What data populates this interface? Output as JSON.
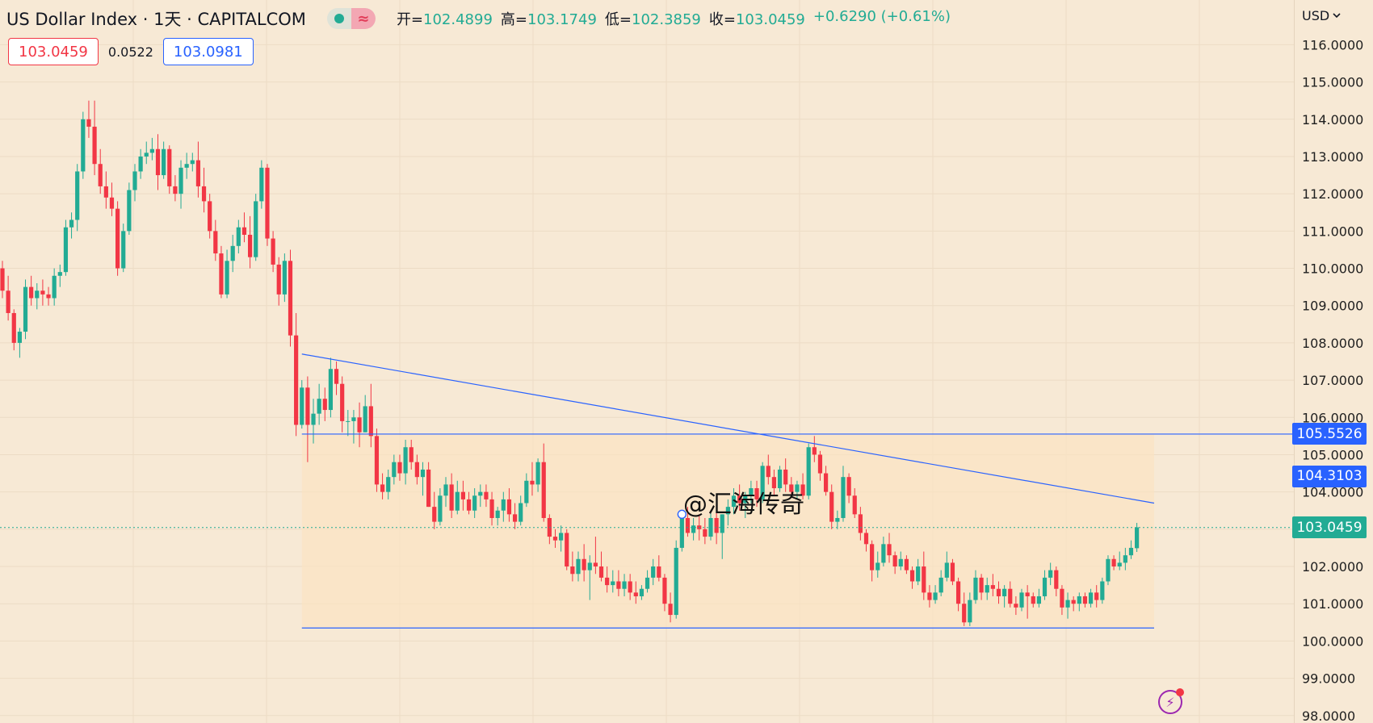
{
  "header": {
    "symbol_title": "US Dollar Index · 1天 · CAPITALCOM",
    "wave_icon": "≈",
    "ohlc": [
      {
        "label": "开=",
        "value": "102.4899"
      },
      {
        "label": "高=",
        "value": "103.1749"
      },
      {
        "label": "低=",
        "value": "102.3859"
      },
      {
        "label": "收=",
        "value": "103.0459"
      },
      {
        "label": "",
        "value": "+0.6290 (+0.61%)"
      }
    ]
  },
  "quote": {
    "sell": "103.0459",
    "spread": "0.0522",
    "buy": "103.0981"
  },
  "currency": {
    "label": "USD",
    "icon": "chevron-down-icon"
  },
  "watermark": "@汇海传奇",
  "price_tags": {
    "resistance": "105.5526",
    "trendline": "104.3103",
    "last": "103.0459"
  },
  "colors": {
    "up": "#22ab94",
    "down": "#f23645",
    "drawing": "#2962ff",
    "background": "#f7e9d5",
    "zone": "#fbe2c2"
  },
  "chart_data": {
    "type": "candlestick",
    "y_axis": {
      "ticks": [
        "116.0000",
        "115.0000",
        "114.0000",
        "113.0000",
        "112.0000",
        "111.0000",
        "110.0000",
        "109.0000",
        "108.0000",
        "107.0000",
        "106.0000",
        "105.0000",
        "104.0000",
        "103.0000",
        "102.0000",
        "101.0000",
        "100.0000",
        "99.0000",
        "98.0000"
      ],
      "ylim": [
        97.8,
        117.2
      ],
      "currency": "USD"
    },
    "last_price": 103.0459,
    "drawings": {
      "trendline": {
        "start_index": 52,
        "start_price": 107.7,
        "end_index": 200,
        "end_price": 103.7
      },
      "resistance": {
        "price": 105.5526,
        "start_index": 52,
        "end_index": 200
      },
      "support": {
        "price": 100.35,
        "start_index": 52,
        "end_index": 200
      },
      "zone": {
        "top": 105.5526,
        "bottom": 100.35,
        "start_index": 52,
        "end_index": 200
      }
    },
    "candles": [
      [
        110.0,
        110.2,
        109.2,
        109.4
      ],
      [
        109.4,
        109.8,
        108.6,
        108.8
      ],
      [
        108.8,
        108.9,
        107.8,
        108.0
      ],
      [
        108.0,
        108.4,
        107.6,
        108.3
      ],
      [
        108.3,
        109.7,
        108.1,
        109.5
      ],
      [
        109.5,
        109.8,
        109.0,
        109.2
      ],
      [
        109.2,
        109.6,
        108.9,
        109.4
      ],
      [
        109.4,
        109.7,
        109.0,
        109.3
      ],
      [
        109.3,
        109.5,
        109.0,
        109.2
      ],
      [
        109.2,
        110.0,
        109.0,
        109.8
      ],
      [
        109.8,
        110.1,
        109.5,
        109.9
      ],
      [
        109.9,
        111.3,
        109.8,
        111.1
      ],
      [
        111.1,
        111.5,
        110.8,
        111.3
      ],
      [
        111.3,
        112.8,
        111.0,
        112.6
      ],
      [
        112.6,
        114.2,
        112.4,
        114.0
      ],
      [
        114.0,
        114.5,
        113.5,
        113.8
      ],
      [
        113.8,
        114.5,
        112.5,
        112.8
      ],
      [
        112.8,
        113.2,
        112.0,
        112.2
      ],
      [
        112.2,
        112.6,
        111.6,
        111.9
      ],
      [
        111.9,
        112.3,
        111.4,
        111.6
      ],
      [
        111.6,
        111.8,
        109.8,
        110.0
      ],
      [
        110.0,
        111.2,
        109.9,
        111.0
      ],
      [
        111.0,
        112.3,
        110.9,
        112.1
      ],
      [
        112.1,
        112.8,
        111.8,
        112.6
      ],
      [
        112.6,
        113.2,
        112.4,
        113.0
      ],
      [
        113.0,
        113.4,
        112.8,
        113.1
      ],
      [
        113.1,
        113.5,
        112.9,
        113.2
      ],
      [
        113.2,
        113.6,
        112.1,
        112.5
      ],
      [
        112.5,
        113.4,
        112.4,
        113.2
      ],
      [
        113.2,
        113.3,
        112.0,
        112.2
      ],
      [
        112.2,
        112.5,
        111.8,
        112.0
      ],
      [
        112.0,
        112.9,
        111.6,
        112.7
      ],
      [
        112.7,
        113.1,
        112.4,
        112.8
      ],
      [
        112.8,
        113.1,
        112.6,
        112.9
      ],
      [
        112.9,
        113.4,
        111.9,
        112.2
      ],
      [
        112.2,
        112.7,
        111.5,
        111.8
      ],
      [
        111.8,
        112.0,
        110.8,
        111.0
      ],
      [
        111.0,
        111.3,
        110.2,
        110.4
      ],
      [
        110.4,
        110.6,
        109.2,
        109.3
      ],
      [
        109.3,
        110.5,
        109.2,
        110.2
      ],
      [
        110.2,
        110.9,
        109.9,
        110.6
      ],
      [
        110.6,
        111.3,
        110.4,
        111.1
      ],
      [
        111.1,
        111.5,
        110.7,
        110.9
      ],
      [
        110.9,
        111.4,
        110.0,
        110.3
      ],
      [
        110.3,
        112.0,
        110.2,
        111.8
      ],
      [
        111.8,
        112.9,
        111.6,
        112.7
      ],
      [
        112.7,
        112.8,
        110.6,
        110.8
      ],
      [
        110.8,
        111.0,
        109.9,
        110.1
      ],
      [
        110.1,
        110.3,
        109.0,
        109.3
      ],
      [
        109.3,
        110.4,
        109.1,
        110.2
      ],
      [
        110.2,
        110.5,
        107.9,
        108.2
      ],
      [
        108.2,
        108.8,
        105.5,
        105.8
      ],
      [
        105.8,
        107.0,
        105.7,
        106.8
      ],
      [
        106.8,
        107.1,
        104.8,
        105.8
      ],
      [
        105.8,
        106.5,
        105.3,
        106.1
      ],
      [
        106.1,
        106.9,
        105.8,
        106.5
      ],
      [
        106.5,
        106.8,
        105.9,
        106.2
      ],
      [
        106.2,
        107.6,
        106.0,
        107.3
      ],
      [
        107.3,
        107.5,
        106.6,
        106.9
      ],
      [
        106.9,
        107.1,
        105.6,
        105.9
      ],
      [
        105.9,
        106.2,
        105.5,
        105.9
      ],
      [
        105.9,
        106.2,
        105.3,
        106.0
      ],
      [
        106.0,
        106.4,
        105.2,
        105.6
      ],
      [
        105.6,
        106.6,
        105.6,
        106.3
      ],
      [
        106.3,
        106.9,
        105.2,
        105.5
      ],
      [
        105.5,
        105.7,
        104.0,
        104.2
      ],
      [
        104.2,
        104.5,
        103.8,
        104.0
      ],
      [
        104.0,
        104.6,
        103.8,
        104.4
      ],
      [
        104.4,
        105.0,
        104.2,
        104.8
      ],
      [
        104.8,
        105.0,
        104.3,
        104.5
      ],
      [
        104.5,
        105.4,
        104.2,
        105.2
      ],
      [
        105.2,
        105.4,
        104.6,
        104.8
      ],
      [
        104.8,
        105.0,
        104.2,
        104.4
      ],
      [
        104.4,
        104.8,
        103.9,
        104.6
      ],
      [
        104.6,
        104.8,
        103.6,
        103.6
      ],
      [
        103.6,
        104.0,
        103.0,
        103.2
      ],
      [
        103.2,
        104.1,
        103.1,
        103.9
      ],
      [
        103.9,
        104.4,
        103.6,
        104.2
      ],
      [
        104.2,
        104.5,
        103.3,
        103.5
      ],
      [
        103.5,
        104.3,
        103.4,
        104.0
      ],
      [
        104.0,
        104.3,
        103.5,
        103.8
      ],
      [
        103.8,
        104.0,
        103.4,
        103.5
      ],
      [
        103.5,
        104.1,
        103.3,
        103.9
      ],
      [
        103.9,
        104.2,
        103.6,
        104.0
      ],
      [
        104.0,
        104.2,
        103.6,
        103.8
      ],
      [
        103.8,
        104.0,
        103.1,
        103.3
      ],
      [
        103.3,
        103.6,
        103.1,
        103.5
      ],
      [
        103.5,
        104.0,
        103.2,
        103.8
      ],
      [
        103.8,
        104.1,
        103.2,
        103.4
      ],
      [
        103.4,
        103.7,
        103.0,
        103.2
      ],
      [
        103.2,
        103.9,
        103.1,
        103.7
      ],
      [
        103.7,
        104.5,
        103.6,
        104.3
      ],
      [
        104.3,
        104.8,
        103.9,
        104.2
      ],
      [
        104.2,
        104.9,
        104.0,
        104.8
      ],
      [
        104.8,
        105.3,
        103.2,
        103.3
      ],
      [
        103.3,
        103.4,
        102.6,
        102.8
      ],
      [
        102.8,
        103.0,
        102.5,
        102.7
      ],
      [
        102.7,
        103.1,
        102.4,
        102.9
      ],
      [
        102.9,
        103.0,
        101.9,
        102.0
      ],
      [
        102.0,
        102.4,
        101.6,
        101.8
      ],
      [
        101.8,
        102.4,
        101.6,
        102.2
      ],
      [
        102.2,
        102.6,
        101.6,
        101.9
      ],
      [
        101.9,
        102.3,
        101.1,
        102.1
      ],
      [
        102.1,
        102.8,
        101.8,
        102.0
      ],
      [
        102.0,
        102.4,
        101.6,
        101.7
      ],
      [
        101.7,
        102.0,
        101.3,
        101.5
      ],
      [
        101.5,
        101.9,
        101.3,
        101.6
      ],
      [
        101.6,
        101.9,
        101.2,
        101.4
      ],
      [
        101.4,
        101.8,
        101.2,
        101.6
      ],
      [
        101.6,
        101.8,
        101.1,
        101.3
      ],
      [
        101.3,
        101.6,
        101.0,
        101.2
      ],
      [
        101.2,
        101.5,
        101.1,
        101.4
      ],
      [
        101.4,
        101.9,
        101.3,
        101.7
      ],
      [
        101.7,
        102.2,
        101.5,
        102.0
      ],
      [
        102.0,
        102.3,
        101.6,
        101.7
      ],
      [
        101.7,
        101.8,
        100.8,
        101.0
      ],
      [
        101.0,
        101.3,
        100.5,
        100.7
      ],
      [
        100.7,
        102.7,
        100.6,
        102.5
      ],
      [
        102.5,
        103.5,
        102.4,
        103.3
      ],
      [
        103.3,
        103.6,
        102.8,
        102.9
      ],
      [
        102.9,
        103.3,
        102.7,
        103.1
      ],
      [
        103.1,
        103.4,
        102.7,
        103.0
      ],
      [
        103.0,
        103.3,
        102.6,
        102.8
      ],
      [
        102.8,
        103.5,
        102.7,
        103.3
      ],
      [
        103.3,
        103.5,
        102.6,
        102.9
      ],
      [
        102.9,
        103.4,
        102.2,
        103.4
      ],
      [
        103.4,
        103.8,
        103.1,
        103.6
      ],
      [
        103.6,
        104.1,
        103.4,
        103.9
      ],
      [
        103.9,
        104.2,
        103.5,
        103.7
      ],
      [
        103.7,
        104.0,
        103.3,
        103.9
      ],
      [
        103.9,
        104.3,
        103.7,
        104.1
      ],
      [
        104.1,
        104.3,
        103.6,
        103.8
      ],
      [
        103.8,
        104.8,
        103.7,
        104.7
      ],
      [
        104.7,
        105.0,
        104.2,
        104.4
      ],
      [
        104.4,
        104.6,
        103.9,
        104.1
      ],
      [
        104.1,
        104.7,
        104.0,
        104.6
      ],
      [
        104.6,
        104.9,
        104.0,
        104.2
      ],
      [
        104.2,
        104.4,
        103.9,
        104.0
      ],
      [
        104.0,
        104.3,
        103.8,
        104.2
      ],
      [
        104.2,
        104.5,
        103.8,
        103.9
      ],
      [
        103.9,
        105.3,
        103.8,
        105.2
      ],
      [
        105.2,
        105.5,
        104.8,
        105.0
      ],
      [
        105.0,
        105.1,
        104.3,
        104.5
      ],
      [
        104.5,
        104.7,
        103.9,
        104.0
      ],
      [
        104.0,
        104.2,
        103.0,
        103.2
      ],
      [
        103.2,
        103.5,
        103.0,
        103.3
      ],
      [
        103.3,
        104.7,
        103.2,
        104.4
      ],
      [
        104.4,
        104.5,
        103.7,
        103.9
      ],
      [
        103.9,
        104.1,
        103.3,
        103.4
      ],
      [
        103.4,
        103.6,
        102.7,
        102.9
      ],
      [
        102.9,
        103.0,
        102.4,
        102.6
      ],
      [
        102.6,
        102.7,
        101.6,
        101.9
      ],
      [
        101.9,
        102.4,
        101.7,
        102.1
      ],
      [
        102.1,
        102.8,
        102.0,
        102.6
      ],
      [
        102.6,
        102.9,
        102.1,
        102.3
      ],
      [
        102.3,
        102.4,
        101.8,
        102.0
      ],
      [
        102.0,
        102.4,
        101.9,
        102.2
      ],
      [
        102.2,
        102.3,
        101.8,
        101.9
      ],
      [
        101.9,
        102.0,
        101.4,
        101.6
      ],
      [
        101.6,
        102.2,
        101.5,
        102.0
      ],
      [
        102.0,
        102.4,
        101.1,
        101.3
      ],
      [
        101.3,
        101.5,
        100.9,
        101.1
      ],
      [
        101.1,
        101.5,
        101.0,
        101.3
      ],
      [
        101.3,
        101.9,
        101.2,
        101.7
      ],
      [
        101.7,
        102.4,
        101.6,
        102.1
      ],
      [
        102.1,
        102.2,
        101.5,
        101.6
      ],
      [
        101.6,
        101.7,
        100.8,
        101.0
      ],
      [
        101.0,
        101.3,
        100.4,
        100.5
      ],
      [
        100.5,
        101.3,
        100.4,
        101.1
      ],
      [
        101.1,
        101.9,
        101.0,
        101.7
      ],
      [
        101.7,
        101.8,
        101.1,
        101.3
      ],
      [
        101.3,
        101.7,
        101.1,
        101.5
      ],
      [
        101.5,
        101.8,
        101.2,
        101.4
      ],
      [
        101.4,
        101.6,
        101.0,
        101.2
      ],
      [
        101.2,
        101.5,
        100.9,
        101.4
      ],
      [
        101.4,
        101.6,
        100.9,
        101.0
      ],
      [
        101.0,
        101.2,
        100.7,
        100.9
      ],
      [
        100.9,
        101.4,
        100.8,
        101.3
      ],
      [
        101.3,
        101.5,
        100.6,
        101.2
      ],
      [
        101.2,
        101.3,
        100.9,
        101.0
      ],
      [
        101.0,
        101.4,
        100.9,
        101.2
      ],
      [
        101.2,
        101.9,
        101.1,
        101.7
      ],
      [
        101.7,
        102.1,
        101.5,
        101.9
      ],
      [
        101.9,
        102.0,
        101.2,
        101.4
      ],
      [
        101.4,
        101.5,
        100.7,
        100.9
      ],
      [
        100.9,
        101.3,
        100.6,
        101.1
      ],
      [
        101.1,
        101.2,
        100.8,
        101.0
      ],
      [
        101.0,
        101.3,
        100.8,
        101.2
      ],
      [
        101.2,
        101.3,
        100.9,
        101.0
      ],
      [
        101.0,
        101.4,
        100.9,
        101.3
      ],
      [
        101.3,
        101.5,
        100.9,
        101.1
      ],
      [
        101.1,
        101.7,
        101.0,
        101.6
      ],
      [
        101.6,
        102.3,
        101.5,
        102.2
      ],
      [
        102.2,
        102.3,
        101.9,
        102.0
      ],
      [
        102.0,
        102.4,
        101.9,
        102.1
      ],
      [
        102.1,
        102.5,
        101.9,
        102.3
      ],
      [
        102.3,
        102.7,
        102.2,
        102.5
      ],
      [
        102.49,
        103.17,
        102.39,
        103.05
      ]
    ]
  }
}
